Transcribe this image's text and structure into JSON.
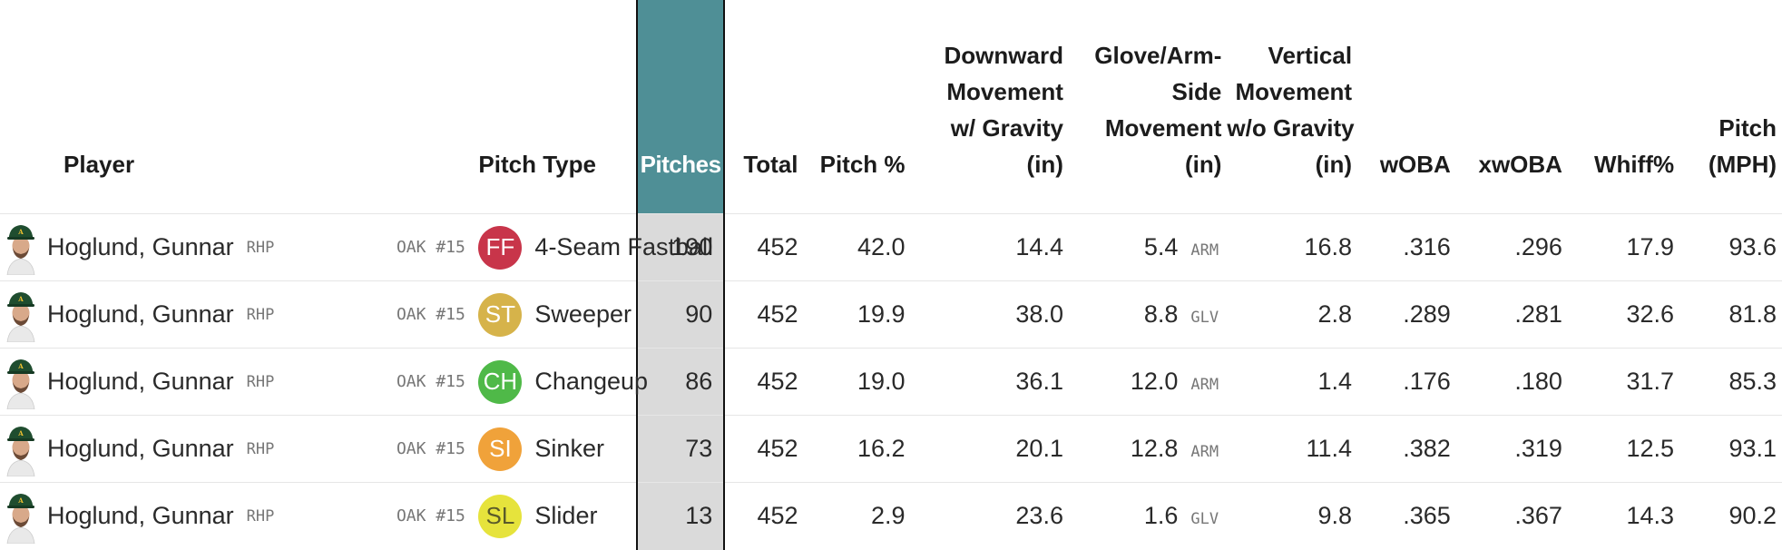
{
  "headers": {
    "player": "Player",
    "pitch_type": "Pitch Type",
    "pitches": "Pitches",
    "total": "Total",
    "pitch_pct": "Pitch %",
    "downward": [
      "Downward",
      "Movement",
      "w/ Gravity",
      "(in)"
    ],
    "glove_arm": [
      "Glove/Arm-",
      "Side",
      "Movement",
      "(in)"
    ],
    "vertical": [
      "Vertical",
      "Movement",
      "w/o Gravity",
      "(in)"
    ],
    "woba": "wOBA",
    "xwoba": "xwOBA",
    "whiff": "Whiff%",
    "mph": [
      "Pitch",
      "(MPH)"
    ]
  },
  "rows": [
    {
      "player": "Hoglund, Gunnar",
      "hand": "RHP",
      "team_num": "OAK #15",
      "pitch_code": "FF",
      "pitch_color": "#c8354a",
      "pitch_name": "4-Seam Fastball",
      "pitches": "190",
      "total": "452",
      "pitch_pct": "42.0",
      "downward": "14.4",
      "glove_arm": "5.4",
      "side": "ARM",
      "vertical": "16.8",
      "woba": ".316",
      "xwoba": ".296",
      "whiff": "17.9",
      "mph": "93.6"
    },
    {
      "player": "Hoglund, Gunnar",
      "hand": "RHP",
      "team_num": "OAK #15",
      "pitch_code": "ST",
      "pitch_color": "#d6b34a",
      "pitch_name": "Sweeper",
      "pitches": "90",
      "total": "452",
      "pitch_pct": "19.9",
      "downward": "38.0",
      "glove_arm": "8.8",
      "side": "GLV",
      "vertical": "2.8",
      "woba": ".289",
      "xwoba": ".281",
      "whiff": "32.6",
      "mph": "81.8"
    },
    {
      "player": "Hoglund, Gunnar",
      "hand": "RHP",
      "team_num": "OAK #15",
      "pitch_code": "CH",
      "pitch_color": "#4fb948",
      "pitch_name": "Changeup",
      "pitches": "86",
      "total": "452",
      "pitch_pct": "19.0",
      "downward": "36.1",
      "glove_arm": "12.0",
      "side": "ARM",
      "vertical": "1.4",
      "woba": ".176",
      "xwoba": ".180",
      "whiff": "31.7",
      "mph": "85.3"
    },
    {
      "player": "Hoglund, Gunnar",
      "hand": "RHP",
      "team_num": "OAK #15",
      "pitch_code": "SI",
      "pitch_color": "#f0a23a",
      "pitch_name": "Sinker",
      "pitches": "73",
      "total": "452",
      "pitch_pct": "16.2",
      "downward": "20.1",
      "glove_arm": "12.8",
      "side": "ARM",
      "vertical": "11.4",
      "woba": ".382",
      "xwoba": ".319",
      "whiff": "12.5",
      "mph": "93.1"
    },
    {
      "player": "Hoglund, Gunnar",
      "hand": "RHP",
      "team_num": "OAK #15",
      "pitch_code": "SL",
      "pitch_color": "#e6e33c",
      "pitch_name": "Slider",
      "pitches": "13",
      "total": "452",
      "pitch_pct": "2.9",
      "downward": "23.6",
      "glove_arm": "1.6",
      "side": "GLV",
      "vertical": "9.8",
      "woba": ".365",
      "xwoba": ".367",
      "whiff": "14.3",
      "mph": "90.2"
    }
  ],
  "colors": {
    "sorted_header_bg": "#4f8f96",
    "sorted_cell_bg": "#dadada",
    "cap_green": "#1f4d2f"
  },
  "icons": {
    "avatar": "player-headshot-icon"
  }
}
